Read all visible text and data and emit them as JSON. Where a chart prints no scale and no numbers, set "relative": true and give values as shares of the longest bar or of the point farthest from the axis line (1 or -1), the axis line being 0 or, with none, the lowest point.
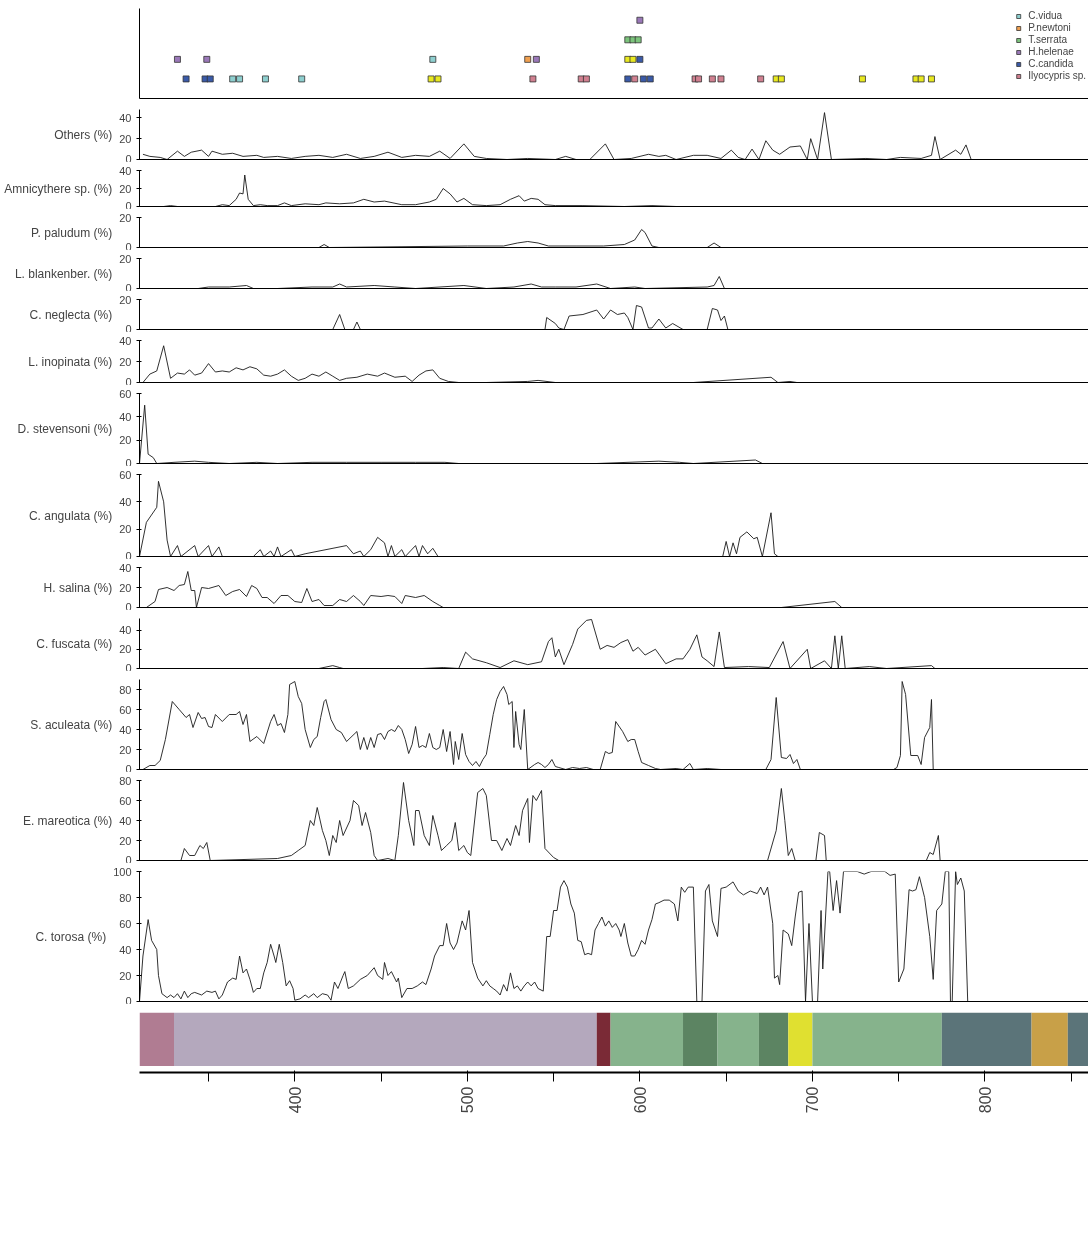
{
  "chart_data": [
    {
      "type": "scatter",
      "relative": true,
      "marker": "square",
      "legend": "top right",
      "tick_labels": false,
      "xlim": [
        310,
        860
      ],
      "series": [
        {
          "name": "C.vidua",
          "color": "#8ecfcf",
          "x": [
            364,
            368,
            383,
            404,
            480
          ],
          "values": [
            0.25,
            0.25,
            0.25,
            0.25,
            0.5
          ]
        },
        {
          "name": "P.newtoni",
          "color": "#f0a050",
          "x": [
            535
          ],
          "values": [
            0.5
          ]
        },
        {
          "name": "T.serrata",
          "color": "#7cc47c",
          "x": [
            593,
            596,
            599
          ],
          "values": [
            0.75,
            0.75,
            0.75
          ]
        },
        {
          "name": "H.helenae",
          "color": "#9a78b8",
          "x": [
            332,
            349,
            540,
            600
          ],
          "values": [
            0.5,
            0.5,
            0.5,
            1.0
          ]
        },
        {
          "name": "C.candida",
          "color": "#3a5aa8",
          "x": [
            337,
            348,
            351,
            593,
            600,
            602,
            606
          ],
          "values": [
            0.25,
            0.25,
            0.25,
            0.25,
            0.5,
            0.25,
            0.25
          ]
        },
        {
          "name": "Ilyocypris sp.",
          "color": "#d08090",
          "x": [
            538,
            566,
            569,
            597,
            632,
            634,
            642,
            647,
            670
          ],
          "values": [
            0.25,
            0.25,
            0.25,
            0.25,
            0.25,
            0.25,
            0.25,
            0.25,
            0.25
          ]
        },
        {
          "color": "#e8e820",
          "x": [
            479,
            483,
            593,
            596,
            679,
            682,
            729,
            760,
            763,
            769
          ],
          "values": [
            0.25,
            0.25,
            0.5,
            0.5,
            0.25,
            0.25,
            0.25,
            0.25,
            0.25,
            0.25
          ]
        }
      ]
    },
    {
      "type": "line",
      "ylabel": "Others (%)",
      "tick_labels": "y",
      "xlim": [
        310,
        860
      ],
      "ylim": [
        0,
        48
      ],
      "yticks": [
        0,
        20,
        40
      ],
      "x": [
        312,
        316,
        322,
        326,
        332,
        336,
        340,
        346,
        350,
        352,
        358,
        364,
        370,
        378,
        382,
        390,
        398,
        406,
        414,
        422,
        430,
        438,
        446,
        454,
        462,
        470,
        478,
        484,
        490,
        498,
        504,
        511,
        523,
        535,
        551,
        557,
        563,
        571,
        580,
        585,
        595,
        605,
        611,
        615,
        621,
        631,
        639,
        647,
        653,
        657,
        661,
        665,
        669,
        673,
        677,
        681,
        687,
        693,
        697,
        699,
        703,
        707,
        711,
        731,
        743,
        751,
        763,
        769,
        771,
        774,
        783,
        786,
        789,
        792
      ],
      "series": [
        {
          "color": "#1a1a1a",
          "values": [
            5,
            3,
            2,
            0,
            8,
            3,
            7,
            9,
            3,
            8,
            5,
            6,
            3,
            4,
            2,
            3,
            1,
            3,
            4,
            2,
            5,
            1,
            3,
            7,
            2,
            4,
            3,
            8,
            1,
            15,
            3,
            1,
            0,
            1,
            0,
            3,
            0,
            0,
            15,
            0,
            1,
            5,
            3,
            4,
            0,
            4,
            4,
            1,
            9,
            2,
            0,
            10,
            0,
            18,
            9,
            5,
            12,
            13,
            0,
            20,
            0,
            45,
            0,
            1,
            0,
            2,
            1,
            4,
            22,
            0,
            9,
            5,
            14,
            0
          ]
        }
      ]
    },
    {
      "type": "line",
      "ylabel": "Amnicythere sp. (%)",
      "tick_labels": "y",
      "xlim": [
        310,
        860
      ],
      "ylim": [
        0,
        40
      ],
      "yticks": [
        0,
        20,
        40
      ],
      "x": [
        324,
        328,
        332,
        354,
        358,
        362,
        366,
        368,
        370,
        371,
        373,
        376,
        380,
        384,
        390,
        394,
        398,
        406,
        414,
        418,
        426,
        434,
        440,
        446,
        452,
        462,
        470,
        478,
        482,
        486,
        490,
        494,
        498,
        503,
        511,
        519,
        525,
        530,
        533,
        537,
        541,
        545,
        551,
        567,
        591,
        607,
        621
      ],
      "series": [
        {
          "color": "#1a1a1a",
          "values": [
            0,
            1,
            0,
            0,
            2,
            1,
            8,
            15,
            14,
            35,
            8,
            1,
            2,
            1,
            1,
            4,
            1,
            3,
            2,
            4,
            3,
            4,
            8,
            5,
            6,
            2,
            2,
            5,
            8,
            20,
            14,
            5,
            9,
            2,
            1,
            2,
            8,
            12,
            6,
            9,
            8,
            2,
            1,
            1,
            0,
            1,
            0
          ]
        }
      ]
    },
    {
      "type": "line",
      "ylabel": "P. paludum (%)",
      "tick_labels": "y",
      "xlim": [
        310,
        860
      ],
      "ylim": [
        0,
        20
      ],
      "yticks": [
        0,
        20
      ],
      "x": [
        310,
        414,
        417,
        420,
        500,
        521,
        529,
        535,
        541,
        547,
        563,
        579,
        591,
        597,
        601,
        603,
        607,
        611,
        639,
        643,
        647
      ],
      "series": [
        {
          "color": "#1a1a1a",
          "values": [
            0,
            0,
            2,
            0,
            1,
            1,
            3,
            4,
            3,
            1,
            1,
            1,
            2,
            5,
            12,
            10,
            1,
            0,
            0,
            3,
            0
          ]
        }
      ]
    },
    {
      "type": "line",
      "ylabel": "L. blankenber. (%)",
      "tick_labels": "y",
      "xlim": [
        310,
        860
      ],
      "ylim": [
        0,
        20
      ],
      "yticks": [
        0,
        20
      ],
      "x": [
        344,
        350,
        362,
        372,
        376,
        390,
        410,
        422,
        426,
        430,
        446,
        458,
        470,
        498,
        511,
        527,
        537,
        543,
        551,
        563,
        575,
        583,
        597,
        603,
        639,
        643,
        646,
        649
      ],
      "series": [
        {
          "color": "#1a1a1a",
          "values": [
            0,
            1,
            1,
            2,
            0,
            0,
            1,
            1,
            3,
            1,
            2,
            1,
            0,
            2,
            0,
            1,
            3,
            1,
            1,
            1,
            3,
            0,
            1,
            0,
            1,
            2,
            8,
            0
          ]
        }
      ]
    },
    {
      "type": "line",
      "ylabel": "C. neglecta (%)",
      "tick_labels": "y",
      "xlim": [
        310,
        860
      ],
      "ylim": [
        0,
        20
      ],
      "yticks": [
        0,
        20
      ],
      "x": [
        422,
        426,
        429,
        434,
        436,
        438,
        545,
        546,
        551,
        553,
        556,
        559,
        567,
        575,
        579,
        583,
        587,
        591,
        593,
        596,
        598,
        601,
        605,
        607,
        611,
        615,
        619,
        625,
        639,
        642,
        645,
        647,
        649,
        651
      ],
      "series": [
        {
          "color": "#1a1a1a",
          "values": [
            0,
            10,
            0,
            0,
            5,
            0,
            0,
            8,
            4,
            1,
            0,
            9,
            10,
            13,
            7,
            13,
            10,
            11,
            8,
            0,
            16,
            15,
            1,
            1,
            7,
            1,
            4,
            0,
            0,
            14,
            13,
            6,
            9,
            0
          ]
        }
      ]
    },
    {
      "type": "line",
      "ylabel": "L. inopinata (%)",
      "tick_labels": "y",
      "xlim": [
        310,
        860
      ],
      "ylim": [
        0,
        40
      ],
      "yticks": [
        0,
        20,
        40
      ],
      "x": [
        312,
        316,
        320,
        324,
        328,
        332,
        336,
        339,
        342,
        346,
        350,
        354,
        358,
        362,
        366,
        370,
        374,
        378,
        382,
        386,
        390,
        394,
        398,
        402,
        406,
        410,
        414,
        418,
        422,
        426,
        430,
        436,
        442,
        448,
        452,
        458,
        464,
        468,
        472,
        476,
        480,
        484,
        489,
        495,
        511,
        535,
        541,
        551,
        631,
        676,
        680,
        687,
        691
      ],
      "series": [
        {
          "color": "#1a1a1a",
          "values": [
            0,
            8,
            11,
            35,
            4,
            9,
            8,
            12,
            7,
            9,
            18,
            10,
            11,
            10,
            14,
            12,
            15,
            13,
            7,
            6,
            8,
            12,
            6,
            2,
            4,
            8,
            6,
            10,
            6,
            2,
            4,
            5,
            8,
            6,
            9,
            5,
            6,
            1,
            7,
            11,
            12,
            4,
            1,
            0,
            0,
            1,
            2,
            0,
            0,
            5,
            0,
            1,
            0
          ]
        }
      ]
    },
    {
      "type": "line",
      "ylabel": "D. stevensoni (%)",
      "tick_labels": "y",
      "xlim": [
        310,
        860
      ],
      "ylim": [
        0,
        60
      ],
      "yticks": [
        0,
        20,
        40,
        60
      ],
      "x": [
        310,
        313,
        315,
        318,
        320,
        330,
        342,
        350,
        362,
        378,
        390,
        410,
        430,
        450,
        470,
        487,
        495,
        527,
        575,
        611,
        623,
        631,
        667,
        671,
        691
      ],
      "series": [
        {
          "color": "#1a1a1a",
          "values": [
            0,
            50,
            8,
            5,
            0,
            1,
            2,
            1,
            0,
            1,
            0,
            1,
            1,
            1,
            1,
            1,
            0,
            0,
            0,
            2,
            1,
            0,
            3,
            0,
            0
          ]
        }
      ]
    },
    {
      "type": "line",
      "ylabel": "C. angulata (%)",
      "tick_labels": "y",
      "xlim": [
        310,
        860
      ],
      "ylim": [
        0,
        60
      ],
      "yticks": [
        0,
        20,
        40,
        60
      ],
      "x": [
        310,
        314,
        320,
        321,
        324,
        326,
        328,
        332,
        334,
        342,
        344,
        350,
        352,
        356,
        358,
        376,
        380,
        382,
        386,
        388,
        390,
        392,
        398,
        400,
        406,
        430,
        434,
        438,
        440,
        444,
        448,
        452,
        454,
        456,
        458,
        462,
        464,
        470,
        472,
        474,
        477,
        480,
        483,
        648,
        650,
        652,
        654,
        656,
        658,
        662,
        666,
        668,
        671,
        676,
        678,
        680
      ],
      "series": [
        {
          "color": "#1a1a1a",
          "values": [
            0,
            25,
            36,
            55,
            40,
            12,
            0,
            8,
            0,
            8,
            0,
            8,
            0,
            7,
            0,
            0,
            5,
            0,
            4,
            0,
            7,
            0,
            5,
            0,
            2,
            8,
            2,
            4,
            0,
            5,
            14,
            10,
            0,
            8,
            0,
            5,
            0,
            8,
            0,
            8,
            2,
            6,
            0,
            0,
            11,
            0,
            10,
            2,
            14,
            18,
            13,
            14,
            0,
            32,
            2,
            0
          ]
        }
      ]
    },
    {
      "type": "line",
      "ylabel": "H. salina (%)",
      "tick_labels": "y",
      "xlim": [
        310,
        860
      ],
      "ylim": [
        0,
        40
      ],
      "yticks": [
        0,
        20,
        40
      ],
      "x": [
        314,
        319,
        321,
        326,
        330,
        333,
        336,
        338,
        340,
        342,
        343,
        346,
        350,
        356,
        360,
        364,
        368,
        372,
        375,
        378,
        381,
        384,
        388,
        392,
        396,
        400,
        404,
        407,
        410,
        414,
        417,
        422,
        426,
        430,
        434,
        438,
        440,
        444,
        450,
        454,
        458,
        462,
        464,
        470,
        475,
        480,
        484,
        486,
        682,
        713,
        717
      ],
      "series": [
        {
          "color": "#1a1a1a",
          "values": [
            0,
            6,
            18,
            20,
            17,
            22,
            23,
            36,
            17,
            17,
            0,
            20,
            19,
            22,
            12,
            16,
            18,
            11,
            22,
            19,
            10,
            10,
            4,
            12,
            12,
            6,
            5,
            19,
            6,
            8,
            2,
            2,
            8,
            6,
            12,
            6,
            2,
            12,
            11,
            12,
            11,
            4,
            12,
            10,
            12,
            6,
            2,
            0,
            0,
            6,
            0
          ]
        }
      ]
    },
    {
      "type": "line",
      "ylabel": "C. fuscata (%)",
      "tick_labels": "y",
      "xlim": [
        310,
        860
      ],
      "ylim": [
        0,
        52
      ],
      "yticks": [
        0,
        20,
        40
      ],
      "x": [
        414,
        422,
        426,
        428,
        474,
        486,
        495,
        499,
        503,
        511,
        519,
        527,
        535,
        543,
        547,
        549,
        551,
        553,
        556,
        561,
        564,
        569,
        572,
        577,
        581,
        585,
        589,
        593,
        596,
        599,
        603,
        609,
        615,
        621,
        625,
        629,
        633,
        636,
        639,
        643,
        646,
        649,
        663,
        675,
        683,
        687,
        697,
        699,
        707,
        711,
        713,
        715,
        717,
        719,
        733,
        743,
        769,
        771
      ],
      "series": [
        {
          "color": "#1a1a1a",
          "values": [
            0,
            3,
            1,
            0,
            0,
            1,
            0,
            17,
            10,
            6,
            1,
            8,
            4,
            7,
            28,
            32,
            12,
            20,
            4,
            25,
            41,
            50,
            51,
            20,
            24,
            22,
            27,
            30,
            18,
            22,
            14,
            20,
            5,
            10,
            10,
            20,
            35,
            12,
            8,
            2,
            38,
            1,
            2,
            1,
            28,
            0,
            20,
            0,
            8,
            0,
            34,
            0,
            34,
            0,
            2,
            0,
            3,
            0
          ]
        }
      ]
    },
    {
      "type": "line",
      "ylabel": "S. aculeata (%)",
      "tick_labels": "y",
      "xlim": [
        310,
        860
      ],
      "ylim": [
        0,
        90
      ],
      "yticks": [
        0,
        20,
        40,
        60,
        80
      ],
      "x": [
        312,
        316,
        319,
        322,
        325,
        329,
        333,
        337,
        339,
        341,
        344,
        346,
        348,
        350,
        352,
        354,
        358,
        362,
        366,
        368,
        370,
        372,
        374,
        378,
        382,
        386,
        388,
        390,
        392,
        394,
        396,
        397,
        400,
        402,
        404,
        406,
        409,
        411,
        413,
        415,
        417,
        418,
        421,
        424,
        427,
        430,
        436,
        438,
        440,
        442,
        444,
        446,
        448,
        450,
        452,
        454,
        456,
        458,
        460,
        462,
        464,
        466,
        468,
        470,
        472,
        474,
        476,
        478,
        480,
        482,
        484,
        486,
        488,
        490,
        492,
        493,
        495,
        497,
        499,
        501,
        503,
        505,
        507,
        509,
        511,
        513,
        515,
        517,
        519,
        521,
        523,
        524,
        526,
        527,
        528,
        530,
        531,
        533,
        535,
        539,
        541,
        543,
        545,
        547,
        549,
        551,
        553,
        557,
        561,
        565,
        569,
        573,
        577,
        580,
        582,
        584,
        586,
        590,
        593,
        595,
        597,
        599,
        601,
        605,
        609,
        612,
        621,
        625,
        629,
        631,
        639,
        647,
        673,
        676,
        679,
        682,
        685,
        687,
        689,
        691,
        693,
        747,
        749,
        751,
        752,
        754,
        757,
        761,
        763,
        765,
        768,
        769,
        770
      ],
      "series": [
        {
          "color": "#1a1a1a",
          "values": [
            0,
            4,
            4,
            9,
            30,
            68,
            60,
            52,
            55,
            42,
            57,
            51,
            52,
            43,
            42,
            55,
            48,
            55,
            55,
            58,
            45,
            55,
            28,
            33,
            26,
            48,
            55,
            44,
            46,
            37,
            55,
            85,
            88,
            73,
            66,
            40,
            22,
            30,
            33,
            52,
            68,
            70,
            50,
            40,
            37,
            28,
            38,
            20,
            32,
            20,
            32,
            22,
            35,
            36,
            30,
            38,
            40,
            38,
            44,
            40,
            30,
            16,
            25,
            43,
            22,
            24,
            22,
            36,
            22,
            20,
            22,
            40,
            18,
            38,
            5,
            28,
            10,
            36,
            15,
            8,
            4,
            8,
            3,
            10,
            15,
            35,
            55,
            70,
            78,
            83,
            75,
            65,
            68,
            22,
            58,
            25,
            20,
            60,
            0,
            5,
            7,
            5,
            2,
            5,
            10,
            3,
            2,
            0,
            2,
            1,
            2,
            0,
            0,
            18,
            16,
            17,
            48,
            38,
            28,
            30,
            30,
            18,
            7,
            4,
            1,
            0,
            1,
            0,
            6,
            0,
            1,
            0,
            0,
            10,
            72,
            12,
            11,
            15,
            6,
            10,
            0,
            0,
            2,
            14,
            88,
            75,
            14,
            14,
            5,
            32,
            42,
            70,
            0
          ]
        }
      ]
    },
    {
      "type": "line",
      "ylabel": "E. mareotica (%)",
      "tick_labels": "y",
      "xlim": [
        310,
        860
      ],
      "ylim": [
        0,
        80
      ],
      "yticks": [
        0,
        20,
        40,
        60,
        80
      ],
      "x": [
        310,
        334,
        336,
        339,
        342,
        345,
        347,
        349,
        351,
        390,
        398,
        402,
        406,
        409,
        411,
        413,
        416,
        418,
        420,
        422,
        424,
        426,
        428,
        432,
        434,
        437,
        439,
        441,
        444,
        446,
        448,
        454,
        458,
        460,
        463,
        466,
        469,
        470,
        472,
        475,
        478,
        480,
        483,
        485,
        488,
        491,
        493,
        495,
        498,
        500,
        502,
        506,
        509,
        511,
        514,
        517,
        520,
        523,
        525,
        528,
        530,
        532,
        535,
        536,
        538,
        540,
        543,
        545,
        550,
        553,
        674,
        679,
        682,
        684,
        686,
        688,
        690,
        702,
        704,
        707,
        708,
        766,
        768,
        770,
        773,
        774
      ],
      "series": [
        {
          "color": "#1a1a1a",
          "values": [
            0,
            0,
            12,
            5,
            5,
            15,
            12,
            18,
            0,
            2,
            5,
            10,
            15,
            40,
            35,
            53,
            30,
            20,
            5,
            25,
            18,
            40,
            25,
            40,
            60,
            55,
            35,
            48,
            28,
            5,
            0,
            2,
            0,
            25,
            78,
            40,
            15,
            50,
            50,
            25,
            15,
            45,
            25,
            10,
            15,
            20,
            38,
            10,
            15,
            8,
            5,
            68,
            72,
            65,
            20,
            20,
            10,
            22,
            15,
            35,
            25,
            50,
            62,
            18,
            65,
            60,
            70,
            12,
            3,
            0,
            0,
            30,
            72,
            40,
            5,
            12,
            0,
            0,
            28,
            25,
            0,
            0,
            8,
            6,
            25,
            0
          ]
        }
      ]
    },
    {
      "type": "line",
      "ylabel": "C. torosa (%)",
      "tick_labels": "y",
      "xlim": [
        310,
        860
      ],
      "ylim": [
        0,
        100
      ],
      "yticks": [
        0,
        20,
        40,
        60,
        80,
        100
      ],
      "x": [
        310,
        312,
        315,
        317,
        320,
        321,
        323,
        326,
        328,
        330,
        332,
        334,
        336,
        338,
        340,
        342,
        346,
        349,
        352,
        354,
        356,
        358,
        361,
        364,
        366,
        368,
        370,
        372,
        374,
        376,
        378,
        380,
        382,
        384,
        386,
        388,
        389,
        391,
        393,
        395,
        397,
        399,
        400,
        403,
        406,
        408,
        411,
        413,
        416,
        419,
        421,
        423,
        425,
        428,
        429,
        431,
        434,
        438,
        442,
        446,
        448,
        451,
        452,
        454,
        456,
        459,
        460,
        462,
        465,
        468,
        471,
        474,
        476,
        479,
        481,
        484,
        486,
        488,
        490,
        492,
        494,
        497,
        499,
        501,
        503,
        506,
        509,
        511,
        513,
        515,
        517,
        519,
        521,
        523,
        525,
        527,
        529,
        531,
        533,
        535,
        537,
        539,
        541,
        544,
        546,
        548,
        550,
        552,
        554,
        556,
        558,
        560,
        562,
        564,
        566,
        568,
        570,
        572,
        574,
        576,
        578,
        580,
        582,
        584,
        586,
        588,
        589,
        591,
        593,
        595,
        597,
        599,
        601,
        603,
        605,
        607,
        609,
        611,
        614,
        617,
        620,
        622,
        624,
        626,
        628,
        631,
        633,
        636,
        638,
        640,
        642,
        645,
        647,
        650,
        654,
        657,
        660,
        664,
        668,
        670,
        672,
        674,
        677,
        678,
        680,
        681,
        683,
        686,
        688,
        690,
        692,
        694,
        696,
        698,
        700,
        703,
        705,
        706,
        709,
        710,
        712,
        714,
        716,
        718,
        726,
        730,
        734,
        742,
        745,
        748,
        750,
        753,
        756,
        758,
        760,
        762,
        765,
        768,
        770,
        772,
        775,
        777,
        779,
        780,
        781,
        783,
        784,
        786,
        788,
        790,
        859
      ],
      "series": [
        {
          "color": "#1a1a1a",
          "values": [
            0,
            35,
            63,
            47,
            40,
            20,
            6,
            3,
            5,
            3,
            6,
            2,
            8,
            3,
            6,
            7,
            5,
            8,
            7,
            8,
            2,
            5,
            15,
            18,
            17,
            35,
            22,
            25,
            17,
            7,
            10,
            10,
            22,
            30,
            44,
            35,
            30,
            44,
            30,
            12,
            16,
            10,
            1,
            2,
            5,
            3,
            6,
            3,
            6,
            5,
            1,
            15,
            10,
            20,
            23,
            10,
            12,
            17,
            20,
            26,
            20,
            17,
            30,
            20,
            23,
            15,
            18,
            3,
            10,
            10,
            12,
            15,
            13,
            25,
            35,
            43,
            43,
            60,
            45,
            40,
            45,
            62,
            55,
            70,
            30,
            18,
            12,
            16,
            12,
            10,
            8,
            5,
            13,
            8,
            22,
            10,
            12,
            8,
            12,
            15,
            12,
            15,
            10,
            8,
            50,
            50,
            70,
            70,
            88,
            93,
            88,
            75,
            68,
            47,
            46,
            36,
            37,
            36,
            55,
            60,
            65,
            58,
            62,
            57,
            60,
            55,
            50,
            60,
            45,
            35,
            35,
            40,
            47,
            44,
            55,
            63,
            75,
            76,
            78,
            78,
            75,
            62,
            88,
            84,
            88,
            88,
            0,
            0,
            85,
            90,
            62,
            50,
            87,
            88,
            92,
            85,
            82,
            85,
            83,
            88,
            82,
            88,
            60,
            18,
            20,
            13,
            55,
            52,
            43,
            65,
            84,
            85,
            0,
            60,
            0,
            0,
            70,
            25,
            100,
            100,
            70,
            93,
            68,
            100,
            100,
            98,
            100,
            100,
            97,
            98,
            15,
            25,
            86,
            85,
            86,
            96,
            80,
            50,
            17,
            70,
            75,
            100,
            100,
            0,
            0,
            100,
            90,
            95,
            85,
            0,
            0
          ]
        }
      ]
    },
    {
      "type": "bar",
      "orientation": "horizontal",
      "categories": [
        null
      ],
      "tick_labels": "x",
      "xlim": [
        310,
        860
      ],
      "xticks": [
        400,
        500,
        600,
        700,
        800
      ],
      "series": [
        {
          "color": "#b07c92",
          "base": [
            310
          ],
          "values": [
            20
          ]
        },
        {
          "color": "#b4a8bd",
          "base": [
            330
          ],
          "values": [
            245
          ]
        },
        {
          "color": "#7a2a36",
          "base": [
            575
          ],
          "values": [
            8
          ]
        },
        {
          "color": "#86b38c",
          "base": [
            583
          ],
          "values": [
            42
          ]
        },
        {
          "color": "#5c8462",
          "base": [
            625
          ],
          "values": [
            20
          ]
        },
        {
          "color": "#86b38c",
          "base": [
            645
          ],
          "values": [
            24
          ]
        },
        {
          "color": "#5c8462",
          "base": [
            669
          ],
          "values": [
            17
          ]
        },
        {
          "color": "#e0e030",
          "base": [
            686
          ],
          "values": [
            14
          ]
        },
        {
          "color": "#86b38c",
          "base": [
            700
          ],
          "values": [
            75
          ]
        },
        {
          "color": "#5b7479",
          "base": [
            775
          ],
          "values": [
            52
          ]
        },
        {
          "color": "#c8a048",
          "base": [
            827
          ],
          "values": [
            21
          ]
        },
        {
          "color": "#5b7479",
          "base": [
            848
          ],
          "values": [
            12
          ]
        }
      ]
    }
  ]
}
